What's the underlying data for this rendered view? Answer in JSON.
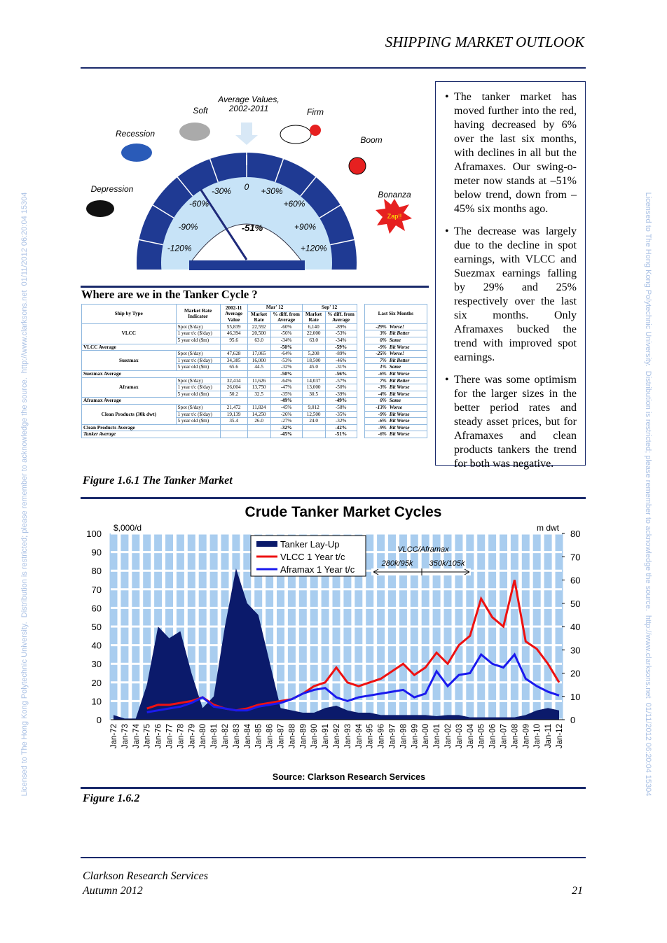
{
  "header": {
    "title": "SHIPPING MARKET OUTLOOK"
  },
  "watermark": "Licensed to The Hong Kong Polytechnic University.  Distribution is restricted; please remember to acknowledge the source.  http://www.clarksons.net  01/11/2012 06:20:04 15304",
  "gauge": {
    "zones": [
      "Depression",
      "Recession",
      "Soft",
      "Firm",
      "Boom",
      "Bonanza"
    ],
    "average": [
      "Average Values,",
      "2002-2011"
    ],
    "zap": "Zap!!",
    "scale": [
      {
        "value": -120,
        "label": "-120%"
      },
      {
        "value": -90,
        "label": "-90%"
      },
      {
        "value": -60,
        "label": "-60%"
      },
      {
        "value": -30,
        "label": "-30%"
      },
      0,
      {
        "value": 30,
        "label": "+30%"
      },
      {
        "value": 60,
        "label": "+60%"
      },
      {
        "value": 90,
        "label": "+90%"
      },
      {
        "value": 120,
        "label": "+120%"
      }
    ],
    "needle": {
      "value": -51,
      "label": "-51%"
    }
  },
  "table": {
    "title": "Where are we in the Tanker Cycle ?",
    "head": {
      "ship": "Ship by Type",
      "indicator": "Market Rate Indicator",
      "avg": "2002-11 Average Value",
      "mar": "Mar' 12",
      "sep": "Sep' 12",
      "rate": "Market Rate",
      "diff": "% diff. from Average",
      "last": "Last Six Months"
    },
    "groups": [
      {
        "ship": "VLCC",
        "rows": [
          [
            "Spot ($/day)",
            "55,839",
            "22,592",
            "-60%",
            "6,140",
            "-89%",
            "-29%",
            "Worse!"
          ],
          [
            "1 year t/c ($/day)",
            "46,394",
            "20,500",
            "-56%",
            "22,000",
            "-53%",
            "3%",
            "Bit Better"
          ],
          [
            "5 year old ($m)",
            "95.6",
            "63.0",
            "-34%",
            "63.0",
            "-34%",
            "0%",
            "Same"
          ]
        ],
        "average": [
          "VLCC Average",
          "-50%",
          "-59%",
          "-9%",
          "Bit Worse"
        ]
      },
      {
        "ship": "Suezmax",
        "rows": [
          [
            "Spot ($/day)",
            "47,628",
            "17,065",
            "-64%",
            "5,208",
            "-89%",
            "-25%",
            "Worse!"
          ],
          [
            "1 year t/c ($/day)",
            "34,385",
            "16,000",
            "-53%",
            "18,500",
            "-46%",
            "7%",
            "Bit Better"
          ],
          [
            "5 year old ($m)",
            "65.6",
            "44.5",
            "-32%",
            "45.0",
            "-31%",
            "1%",
            "Same"
          ]
        ],
        "average": [
          "Suezmax Average",
          "-50%",
          "-56%",
          "-6%",
          "Bit Worse"
        ]
      },
      {
        "ship": "Aframax",
        "rows": [
          [
            "Spot ($/day)",
            "32,414",
            "11,626",
            "-64%",
            "14,037",
            "-57%",
            "7%",
            "Bit Better"
          ],
          [
            "1 year t/c ($/day)",
            "26,004",
            "13,750",
            "-47%",
            "13,000",
            "-50%",
            "-3%",
            "Bit Worse"
          ],
          [
            "5 year old ($m)",
            "50.2",
            "32.5",
            "-35%",
            "30.5",
            "-39%",
            "-4%",
            "Bit Worse"
          ]
        ],
        "average": [
          "Aframax Average",
          "-49%",
          "-49%",
          "0%",
          "Same"
        ]
      },
      {
        "ship": "Clean Products (30k dwt)",
        "rows": [
          [
            "Spot ($/day)",
            "21,472",
            "11,824",
            "-45%",
            "9,012",
            "-58%",
            "-13%",
            "Worse"
          ],
          [
            "1 year t/c ($/day)",
            "19,139",
            "14,250",
            "-26%",
            "12,500",
            "-35%",
            "-9%",
            "Bit Worse"
          ],
          [
            "5 year old ($m)",
            "35.4",
            "26.0",
            "-27%",
            "24.0",
            "-32%",
            "-6%",
            "Bit Worse"
          ]
        ],
        "average": [
          "Clean Products Average",
          "-32%",
          "-42%",
          "-9%",
          "Bit Worse"
        ]
      }
    ],
    "total": [
      "Tanker Average",
      "-45%",
      "-51%",
      "-6%",
      "Bit Worse"
    ]
  },
  "bullets": [
    "The tanker market has moved further into the red, having decreased by 6% over the last six months, with declines in all but the Aframaxes. Our swing-o-meter now stands at –51% below trend, down from –45% six months ago.",
    "The decrease was largely due to the decline in spot earnings, with VLCC and Suezmax earnings falling by 29% and 25% respectively over the last six months. Only Aframaxes bucked the trend with improved spot earnings.",
    "There was some optimism for the larger sizes in the better period rates and steady asset prices, but for Aframaxes and clean products tankers the trend for both was negative."
  ],
  "captions": [
    "Figure 1.6.1 The Tanker Market",
    "Figure 1.6.2"
  ],
  "chart_data": {
    "type": "line",
    "title": "Crude Tanker Market Cycles",
    "ylabel": "$,000/d",
    "y2label": "m dwt",
    "categories": [
      "Jan-72",
      "Jan-73",
      "Jan-74",
      "Jan-75",
      "Jan-76",
      "Jan-77",
      "Jan-78",
      "Jan-79",
      "Jan-80",
      "Jan-81",
      "Jan-82",
      "Jan-83",
      "Jan-84",
      "Jan-85",
      "Jan-86",
      "Jan-87",
      "Jan-88",
      "Jan-89",
      "Jan-90",
      "Jan-91",
      "Jan-92",
      "Jan-93",
      "Jan-94",
      "Jan-95",
      "Jan-96",
      "Jan-97",
      "Jan-98",
      "Jan-99",
      "Jan-00",
      "Jan-01",
      "Jan-02",
      "Jan-03",
      "Jan-04",
      "Jan-05",
      "Jan-06",
      "Jan-07",
      "Jan-08",
      "Jan-09",
      "Jan-10",
      "Jan-11",
      "Jan-12"
    ],
    "series": [
      {
        "name": "Tanker Lay-Up",
        "color": "#0b1a6b",
        "axis": "y2",
        "style": "area",
        "values": [
          2,
          0.5,
          0.5,
          15,
          40,
          35,
          38,
          20,
          5,
          10,
          40,
          65,
          50,
          45,
          25,
          5,
          4,
          3,
          3,
          5,
          6,
          4,
          3,
          3,
          2,
          2,
          2,
          2,
          2,
          1.5,
          2,
          2,
          1,
          1,
          1,
          1,
          1,
          2,
          4,
          5,
          4
        ]
      },
      {
        "name": "VLCC 1 Year t/c",
        "color": "#ee1111",
        "values": [
          null,
          null,
          null,
          6,
          8,
          8,
          9,
          10,
          12,
          8,
          6,
          5,
          6,
          8,
          9,
          10,
          11,
          14,
          18,
          20,
          28,
          20,
          18,
          20,
          22,
          26,
          30,
          24,
          28,
          36,
          30,
          40,
          45,
          65,
          55,
          50,
          75,
          42,
          38,
          30,
          20
        ]
      },
      {
        "name": "Aframax 1 Year t/c",
        "color": "#1a1aee",
        "values": [
          null,
          null,
          null,
          4,
          5,
          6,
          7,
          9,
          12,
          7,
          6,
          5,
          5,
          7,
          8,
          9,
          11,
          14,
          16,
          17,
          12,
          10,
          12,
          13,
          14,
          15,
          16,
          12,
          14,
          26,
          18,
          24,
          25,
          35,
          30,
          28,
          35,
          22,
          18,
          15,
          13
        ]
      }
    ],
    "ylim": [
      0,
      100
    ],
    "yticks": [
      0,
      10,
      20,
      30,
      40,
      50,
      60,
      70,
      80,
      90,
      100
    ],
    "y2lim": [
      0,
      80
    ],
    "y2ticks": [
      0,
      10,
      20,
      30,
      40,
      50,
      60,
      70,
      80
    ],
    "annotations": [
      "VLCC/Aframax",
      "280k/95k",
      "350k/105k"
    ],
    "source": "Source: Clarkson Research Services"
  },
  "footer": {
    "lines": [
      "Clarkson Research Services",
      "Autumn 2012"
    ],
    "page": "21"
  }
}
